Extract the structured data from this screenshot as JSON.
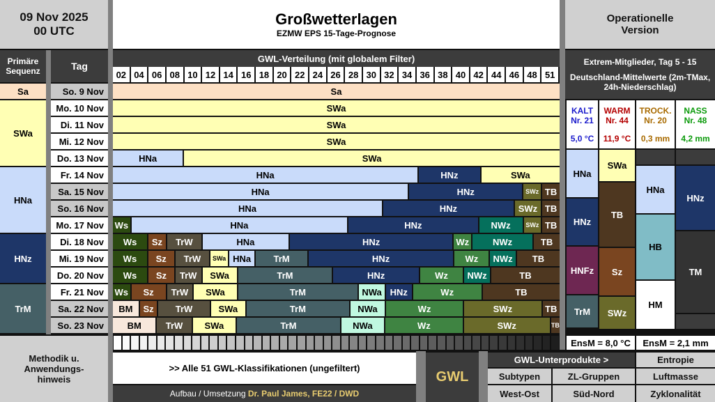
{
  "header": {
    "date": "09 Nov 2025",
    "run": "00 UTC",
    "title": "Großwetterlagen",
    "subtitle": "EZMW EPS 15-Tage-Prognose",
    "version": "Operationelle Version"
  },
  "columns": {
    "seq": "Primäre Sequenz",
    "tag": "Tag",
    "distribution": "GWL-Verteilung (mit globalem Filter)",
    "members": [
      "02",
      "04",
      "06",
      "08",
      "10",
      "12",
      "14",
      "16",
      "18",
      "20",
      "22",
      "24",
      "26",
      "28",
      "30",
      "32",
      "34",
      "36",
      "38",
      "40",
      "42",
      "44",
      "46",
      "48",
      "51"
    ]
  },
  "colors": {
    "Sa": [
      "#fde0c4",
      "#000"
    ],
    "SWa": [
      "#ffffb4",
      "#000"
    ],
    "HNa": [
      "#c9dbfa",
      "#000"
    ],
    "HNz": [
      "#1e3668",
      "#fff"
    ],
    "Ws": [
      "#2c4a10",
      "#fff"
    ],
    "Sz": [
      "#7a4520",
      "#fff"
    ],
    "TrW": [
      "#57503f",
      "#fff"
    ],
    "TrM": [
      "#456066",
      "#fff"
    ],
    "Wz": [
      "#3f8442",
      "#fff"
    ],
    "NWz": [
      "#05705c",
      "#fff"
    ],
    "TB": [
      "#4e3720",
      "#fff"
    ],
    "SWz": [
      "#6a6a2a",
      "#fff"
    ],
    "NWa": [
      "#c0f8e0",
      "#000"
    ],
    "BM": [
      "#f8e8dc",
      "#000"
    ],
    "HNFz": [
      "#6e2752",
      "#fff"
    ],
    "HB": [
      "#80bcc6",
      "#000"
    ],
    "HM": [
      "#ffffff",
      "#000"
    ],
    "TM": [
      "#333333",
      "#fff"
    ]
  },
  "sequence": [
    {
      "gwl": "Sa",
      "rows": 1
    },
    {
      "gwl": "SWa",
      "rows": 4
    },
    {
      "gwl": "HNa",
      "rows": 4
    },
    {
      "gwl": "HNz",
      "rows": 3
    },
    {
      "gwl": "TrM",
      "rows": 3
    }
  ],
  "days": [
    {
      "label": "So. 9 Nov",
      "weekend": true,
      "segments": [
        [
          "Sa",
          51
        ]
      ]
    },
    {
      "label": "Mo. 10 Nov",
      "weekend": false,
      "segments": [
        [
          "SWa",
          51
        ]
      ]
    },
    {
      "label": "Di. 11 Nov",
      "weekend": false,
      "segments": [
        [
          "SWa",
          51
        ]
      ]
    },
    {
      "label": "Mi. 12 Nov",
      "weekend": false,
      "segments": [
        [
          "SWa",
          51
        ]
      ]
    },
    {
      "label": "Do. 13 Nov",
      "weekend": false,
      "segments": [
        [
          "HNa",
          8
        ],
        [
          "SWa",
          43
        ]
      ]
    },
    {
      "label": "Fr. 14 Nov",
      "weekend": false,
      "segments": [
        [
          "HNa",
          35
        ],
        [
          "HNz",
          7
        ],
        [
          "SWa",
          9
        ]
      ]
    },
    {
      "label": "Sa. 15 Nov",
      "weekend": true,
      "segments": [
        [
          "HNa",
          34
        ],
        [
          "HNz",
          13
        ],
        [
          "SWz",
          2
        ],
        [
          "TB",
          2
        ]
      ]
    },
    {
      "label": "So. 16 Nov",
      "weekend": true,
      "segments": [
        [
          "HNa",
          31
        ],
        [
          "HNz",
          15
        ],
        [
          "SWz",
          3
        ],
        [
          "TB",
          2
        ]
      ]
    },
    {
      "label": "Mo. 17 Nov",
      "weekend": false,
      "segments": [
        [
          "Ws",
          2
        ],
        [
          "HNa",
          25
        ],
        [
          "HNz",
          15
        ],
        [
          "NWz",
          5
        ],
        [
          "SWz",
          2
        ],
        [
          "TB",
          2
        ]
      ]
    },
    {
      "label": "Di. 18 Nov",
      "weekend": false,
      "segments": [
        [
          "Ws",
          4
        ],
        [
          "Sz",
          2
        ],
        [
          "TrW",
          4
        ],
        [
          "HNa",
          10
        ],
        [
          "HNz",
          19
        ],
        [
          "Wz",
          2
        ],
        [
          "NWz",
          7
        ],
        [
          "TB",
          3
        ]
      ]
    },
    {
      "label": "Mi. 19 Nov",
      "weekend": false,
      "segments": [
        [
          "Ws",
          4
        ],
        [
          "Sz",
          3
        ],
        [
          "TrW",
          4
        ],
        [
          "SWa",
          2
        ],
        [
          "HNa",
          3
        ],
        [
          "TrM",
          6
        ],
        [
          "HNz",
          17
        ],
        [
          "Wz",
          4
        ],
        [
          "NWz",
          3
        ],
        [
          "TB",
          5
        ]
      ]
    },
    {
      "label": "Do. 20 Nov",
      "weekend": false,
      "segments": [
        [
          "Ws",
          4
        ],
        [
          "Sz",
          3
        ],
        [
          "TrW",
          3
        ],
        [
          "SWa",
          4
        ],
        [
          "TrM",
          11
        ],
        [
          "HNz",
          10
        ],
        [
          "Wz",
          5
        ],
        [
          "NWz",
          3
        ],
        [
          "TB",
          8
        ]
      ]
    },
    {
      "label": "Fr. 21 Nov",
      "weekend": false,
      "segments": [
        [
          "Ws",
          2
        ],
        [
          "Sz",
          4
        ],
        [
          "TrW",
          3
        ],
        [
          "SWa",
          5
        ],
        [
          "TrM",
          14
        ],
        [
          "NWa",
          3
        ],
        [
          "HNz",
          3
        ],
        [
          "Wz",
          8
        ],
        [
          "TB",
          9
        ]
      ]
    },
    {
      "label": "Sa. 22 Nov",
      "weekend": true,
      "segments": [
        [
          "BM",
          3
        ],
        [
          "Sz",
          2
        ],
        [
          "TrW",
          6
        ],
        [
          "SWa",
          4
        ],
        [
          "TrM",
          12
        ],
        [
          "NWa",
          4
        ],
        [
          "Wz",
          9
        ],
        [
          "SWz",
          9
        ],
        [
          "TB",
          2
        ]
      ]
    },
    {
      "label": "So. 23 Nov",
      "weekend": true,
      "segments": [
        [
          "BM",
          5
        ],
        [
          "TrW",
          4
        ],
        [
          "SWa",
          5
        ],
        [
          "TrM",
          12
        ],
        [
          "NWa",
          5
        ],
        [
          "Wz",
          9
        ],
        [
          "SWz",
          10
        ],
        [
          "TB",
          1
        ]
      ]
    }
  ],
  "extremes": {
    "title": "Extrem-Mitglieder, Tag 5 - 15",
    "subtitle": "Deutschland-Mittelwerte (2m-TMax, 24h-Niederschlag)",
    "cols": [
      {
        "name": "KALT",
        "member": "Nr. 21",
        "value": "5,0 °C",
        "color": "#1a1acc",
        "blocks": [
          [
            "HNa",
            70
          ],
          [
            "HNz",
            69
          ],
          [
            "HNFz",
            70
          ],
          [
            "TrM",
            48
          ]
        ]
      },
      {
        "name": "WARM",
        "member": "Nr. 44",
        "value": "11,9 °C",
        "color": "#b40000",
        "blocks": [
          [
            "SWa",
            47
          ],
          [
            "TB",
            94
          ],
          [
            "Sz",
            70
          ],
          [
            "SWz",
            48
          ]
        ]
      },
      {
        "name": "TROCK.",
        "member": "Nr. 20",
        "value": "0,3 mm",
        "color": "#a86a00",
        "blocks": [
          [
            "",
            23
          ],
          [
            "HNa",
            70
          ],
          [
            "HB",
            95
          ],
          [
            "HM",
            71
          ]
        ]
      },
      {
        "name": "NASS",
        "member": "Nr. 48",
        "value": "4,2 mm",
        "color": "#0a9a0a",
        "blocks": [
          [
            "",
            23
          ],
          [
            "HNz",
            94
          ],
          [
            "TM",
            119
          ],
          [
            "",
            23
          ]
        ]
      }
    ],
    "ensm_temp": "EnsM = 8,0 °C",
    "ensm_precip": "EnsM = 2,1 mm"
  },
  "footer": {
    "methodik": "Methodik u. Anwendungs-hinweis",
    "all_link": ">> Alle 51 GWL-Klassifikationen (ungefiltert)",
    "credit_prefix": "Aufbau / Umsetzung ",
    "credit_name": "Dr. Paul James, FE22 / DWD",
    "gwl": "GWL",
    "subproducts": "GWL-Unterprodukte >",
    "entropie": "Entropie",
    "subtypen": "Subtypen",
    "zl": "ZL-Gruppen",
    "luftmasse": "Luftmasse",
    "westost": "West-Ost",
    "suednord": "Süd-Nord",
    "zyklonalitaet": "Zyklonalität"
  }
}
